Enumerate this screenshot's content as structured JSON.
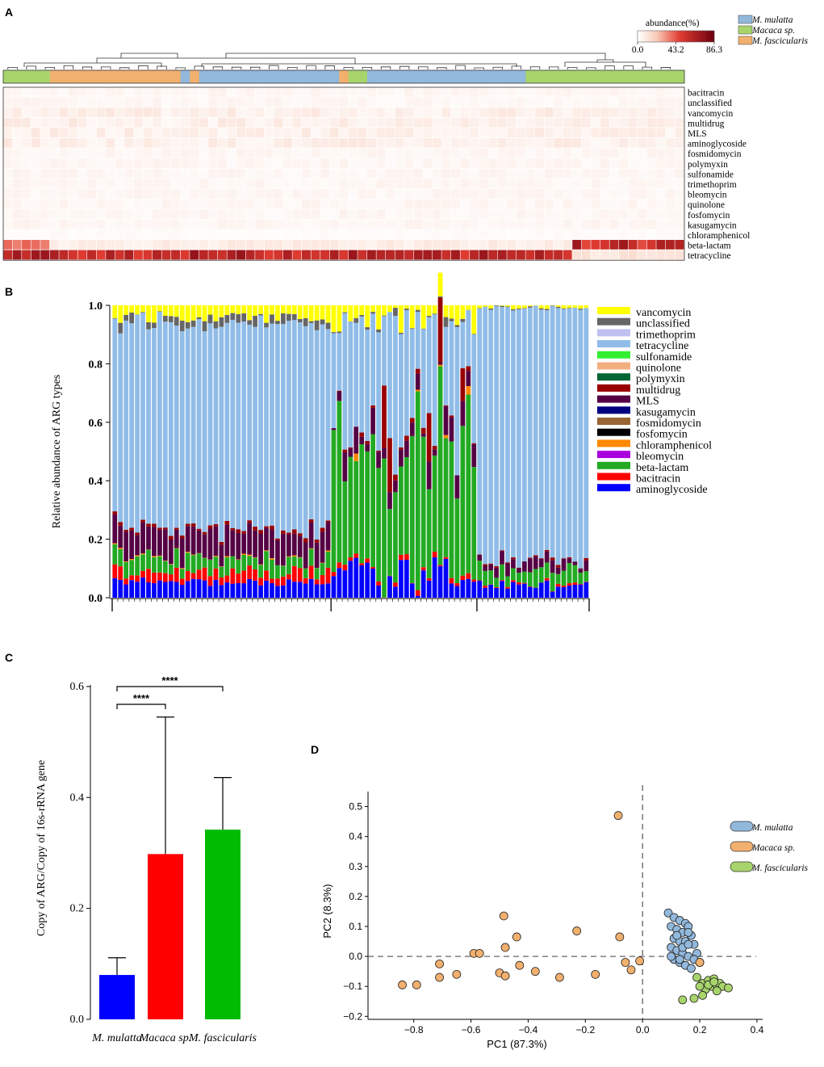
{
  "panels": {
    "A": "A",
    "B": "B",
    "C": "C",
    "D": "D"
  },
  "colors": {
    "mulatta": "#92b8dc",
    "macaca": "#f2b06e",
    "fascicularis": "#a8d46c"
  },
  "chart_data": [
    {
      "type": "heatmap",
      "panel": "A",
      "title": "abundance(%)",
      "colorbar_ticks": [
        "0.0",
        "43.2",
        "86.3"
      ],
      "colorbar_range": [
        0,
        86.3
      ],
      "legend": [
        {
          "name": "M. mulatta",
          "color": "#92b8dc"
        },
        {
          "name": "Macaca sp.",
          "color": "#a8d46c"
        },
        {
          "name": "M. fascicularis",
          "color": "#f2b06e"
        }
      ],
      "rows": [
        "bacitracin",
        "unclassified",
        "vancomycin",
        "multidrug",
        "MLS",
        "aminoglycoside",
        "fosmidomycin",
        "polymyxin",
        "sulfonamide",
        "trimethoprim",
        "bleomycin",
        "quinolone",
        "fosfomycin",
        "kasugamycin",
        "chloramphenicol",
        "beta-lactam",
        "tetracycline"
      ],
      "group_runs": [
        {
          "group": "fascicularis",
          "n": 5
        },
        {
          "group": "macaca",
          "n": 14
        },
        {
          "group": "mulatta",
          "n": 1
        },
        {
          "group": "macaca",
          "n": 1
        },
        {
          "group": "mulatta",
          "n": 15
        },
        {
          "group": "macaca",
          "n": 1
        },
        {
          "group": "fascicularis",
          "n": 2
        },
        {
          "group": "mulatta",
          "n": 17
        },
        {
          "group": "fascicularis",
          "n": 17
        }
      ]
    },
    {
      "type": "bar",
      "panel": "B",
      "stacked": true,
      "ylabel": "Relative abundance of ARG types",
      "yticks": [
        "0.0",
        "0.2",
        "0.4",
        "0.6",
        "0.8",
        "1.0"
      ],
      "ylim": [
        0,
        1
      ],
      "legend": [
        "vancomycin",
        "unclassified",
        "trimethoprim",
        "tetracycline",
        "sulfonamide",
        "quinolone",
        "polymyxin",
        "multidrug",
        "MLS",
        "kasugamycin",
        "fosmidomycin",
        "fosfomycin",
        "chloramphenicol",
        "bleomycin",
        "beta-lactam",
        "bacitracin",
        "aminoglycoside"
      ],
      "legend_colors": {
        "vancomycin": "#ffff00",
        "unclassified": "#666666",
        "trimethoprim": "#c0c0f0",
        "tetracycline": "#90bce8",
        "sulfonamide": "#33ee33",
        "quinolone": "#f2b080",
        "polymyxin": "#006633",
        "multidrug": "#990000",
        "MLS": "#550044",
        "kasugamycin": "#000080",
        "fosmidomycin": "#996633",
        "fosfomycin": "#000000",
        "chloramphenicol": "#ff8800",
        "bleomycin": "#aa00dd",
        "beta-lactam": "#22aa22",
        "bacitracin": "#ff0000",
        "aminoglycoside": "#0000ff"
      },
      "groups": [
        {
          "name": "M. mulatta",
          "n": 39
        },
        {
          "name": "Macaca sp.",
          "n": 26
        },
        {
          "name": "M. fascicularis",
          "n": 20
        }
      ],
      "n_samples": 85
    },
    {
      "type": "bar",
      "panel": "C",
      "categories": [
        "M. mulatta",
        "Macaca sp.",
        "M. fascicularis"
      ],
      "values": [
        0.08,
        0.298,
        0.342
      ],
      "errors": [
        0.031,
        0.247,
        0.094
      ],
      "colors": [
        "#0000ff",
        "#ff0000",
        "#00bb00"
      ],
      "ylabel": "Copy of ARG/Copy of 16s-rRNA gene",
      "yticks": [
        "0.0",
        "0.2",
        "0.4",
        "0.6"
      ],
      "ylim": [
        0,
        0.6
      ],
      "significance": [
        {
          "from": 0,
          "to": 1,
          "label": "****"
        },
        {
          "from": 0,
          "to": 2,
          "label": "****"
        }
      ]
    },
    {
      "type": "scatter",
      "panel": "D",
      "xlabel": "PC1 (87.3%)",
      "ylabel": "PC2 (8.3%)",
      "xticks": [
        "−0.8",
        "−0.6",
        "−0.4",
        "−0.2",
        "0.0",
        "0.2",
        "0.4"
      ],
      "yticks": [
        "−0.2",
        "−0.1",
        "0.0",
        "0.1",
        "0.2",
        "0.3",
        "0.4",
        "0.5"
      ],
      "xlim": [
        -0.96,
        0.42
      ],
      "ylim": [
        -0.21,
        0.55
      ],
      "legend": [
        "M. mulatta",
        "Macaca sp.",
        "M. fascicularis"
      ],
      "series": [
        {
          "name": "M. mulatta",
          "color": "#92b8dc",
          "points": [
            [
              0.09,
              0.145
            ],
            [
              0.11,
              0.13
            ],
            [
              0.13,
              0.12
            ],
            [
              0.15,
              0.11
            ],
            [
              0.16,
              0.1
            ],
            [
              0.1,
              0.1
            ],
            [
              0.12,
              0.09
            ],
            [
              0.14,
              0.08
            ],
            [
              0.17,
              0.07
            ],
            [
              0.11,
              0.06
            ],
            [
              0.13,
              0.05
            ],
            [
              0.15,
              0.05
            ],
            [
              0.18,
              0.04
            ],
            [
              0.1,
              0.03
            ],
            [
              0.12,
              0.02
            ],
            [
              0.14,
              0.01
            ],
            [
              0.16,
              0.0
            ],
            [
              0.19,
              0.01
            ],
            [
              0.11,
              -0.01
            ],
            [
              0.13,
              -0.02
            ],
            [
              0.15,
              -0.03
            ],
            [
              0.17,
              -0.04
            ],
            [
              0.2,
              -0.02
            ],
            [
              0.12,
              0.07
            ],
            [
              0.16,
              0.08
            ],
            [
              0.14,
              0.03
            ],
            [
              0.18,
              -0.01
            ],
            [
              0.1,
              0.0
            ],
            [
              0.13,
              -0.01
            ],
            [
              0.16,
              0.04
            ]
          ]
        },
        {
          "name": "Macaca sp.",
          "color": "#f2b06e",
          "points": [
            [
              -0.085,
              0.47
            ],
            [
              -0.84,
              -0.095
            ],
            [
              -0.79,
              -0.095
            ],
            [
              -0.71,
              -0.025
            ],
            [
              -0.71,
              -0.07
            ],
            [
              -0.65,
              -0.06
            ],
            [
              -0.59,
              0.01
            ],
            [
              -0.57,
              0.01
            ],
            [
              -0.5,
              -0.055
            ],
            [
              -0.485,
              0.135
            ],
            [
              -0.48,
              0.03
            ],
            [
              -0.48,
              -0.065
            ],
            [
              -0.44,
              0.065
            ],
            [
              -0.43,
              -0.03
            ],
            [
              -0.375,
              -0.05
            ],
            [
              -0.29,
              -0.07
            ],
            [
              -0.23,
              0.085
            ],
            [
              -0.165,
              -0.06
            ],
            [
              -0.08,
              0.065
            ],
            [
              -0.06,
              -0.02
            ],
            [
              -0.04,
              -0.045
            ],
            [
              -0.01,
              -0.015
            ],
            [
              0.2,
              -0.02
            ]
          ]
        },
        {
          "name": "M. fascicularis",
          "color": "#a8d46c",
          "points": [
            [
              0.19,
              -0.07
            ],
            [
              0.21,
              -0.09
            ],
            [
              0.23,
              -0.08
            ],
            [
              0.24,
              -0.1
            ],
            [
              0.25,
              -0.075
            ],
            [
              0.26,
              -0.095
            ],
            [
              0.27,
              -0.09
            ],
            [
              0.28,
              -0.1
            ],
            [
              0.3,
              -0.105
            ],
            [
              0.22,
              -0.11
            ],
            [
              0.2,
              -0.1
            ],
            [
              0.26,
              -0.115
            ],
            [
              0.21,
              -0.13
            ],
            [
              0.14,
              -0.145
            ],
            [
              0.18,
              -0.14
            ],
            [
              0.23,
              -0.095
            ],
            [
              0.25,
              -0.085
            ]
          ]
        }
      ]
    }
  ]
}
